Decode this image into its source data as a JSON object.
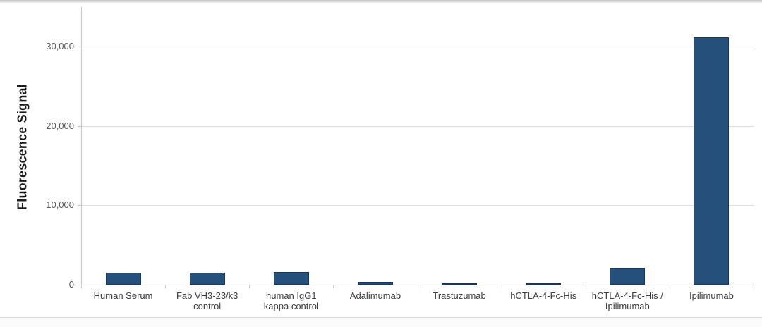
{
  "chart_data": {
    "type": "bar",
    "title": "",
    "xlabel": "",
    "ylabel": "Fluorescence Signal",
    "categories": [
      "Human Serum",
      "Fab VH3-23/k3\ncontrol",
      "human IgG1\nkappa control",
      "Adalimumab",
      "Trastuzumab",
      "hCTLA-4-Fc-His",
      "hCTLA-4-Fc-His /\nIpilimumab",
      "Ipilimumab"
    ],
    "values": [
      1500,
      1500,
      1600,
      350,
      150,
      200,
      2100,
      31200
    ],
    "ylim": [
      0,
      35000
    ],
    "yticks": [
      {
        "value": 0,
        "label": "0"
      },
      {
        "value": 10000,
        "label": "10,000"
      },
      {
        "value": 20000,
        "label": "20,000"
      },
      {
        "value": 30000,
        "label": "30,000"
      }
    ],
    "grid": "horizontal",
    "legend": "none",
    "bar_color": "#25507C",
    "bar_border_color": "#16365C"
  }
}
